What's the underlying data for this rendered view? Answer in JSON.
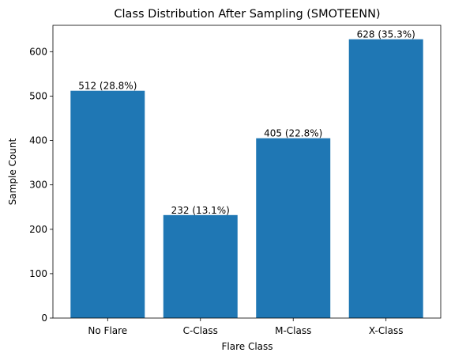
{
  "chart_data": {
    "type": "bar",
    "title": "Class Distribution After Sampling (SMOTEENN)",
    "xlabel": "Flare Class",
    "ylabel": "Sample Count",
    "categories": [
      "No Flare",
      "C-Class",
      "M-Class",
      "X-Class"
    ],
    "values": [
      512,
      232,
      405,
      628
    ],
    "bar_labels": [
      "512 (28.8%)",
      "232 (13.1%)",
      "405 (22.8%)",
      "628 (35.3%)"
    ],
    "yticks": [
      0,
      100,
      200,
      300,
      400,
      500,
      600
    ],
    "ylim": [
      0,
      659.4
    ],
    "grid": false,
    "legend": "none",
    "bar_color": "#1f77b4"
  }
}
